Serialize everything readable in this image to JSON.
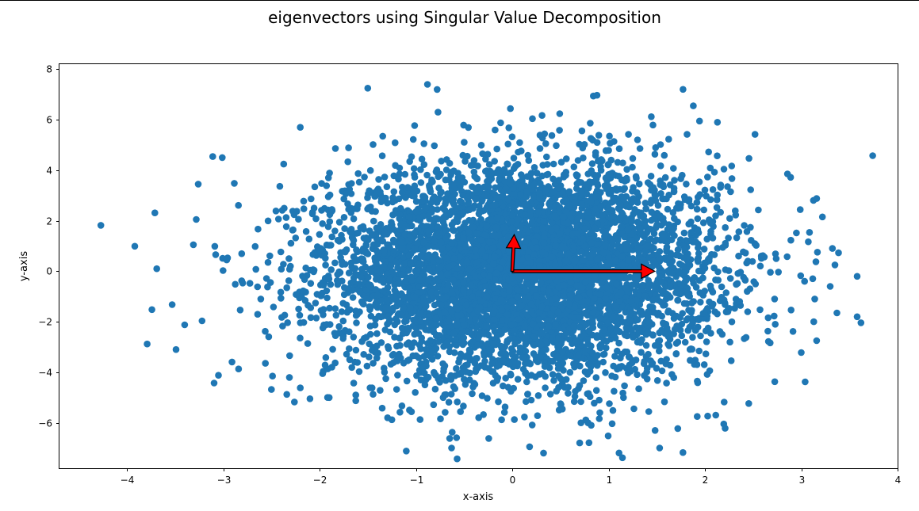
{
  "chart_data": {
    "type": "scatter",
    "title": "eigenvectors using Singular Value Decomposition",
    "xlabel": "x-axis",
    "ylabel": "y-axis",
    "xlim": [
      -4.7,
      4.0
    ],
    "ylim": [
      -7.8,
      8.2
    ],
    "xticks": [
      -4,
      -3,
      -2,
      -1,
      0,
      1,
      2,
      3,
      4
    ],
    "xtick_labels": [
      "−4",
      "−3",
      "−2",
      "−1",
      "0",
      "1",
      "2",
      "3",
      "4"
    ],
    "yticks": [
      -6,
      -4,
      -2,
      0,
      2,
      4,
      6,
      8
    ],
    "ytick_labels": [
      "−6",
      "−4",
      "−2",
      "0",
      "2",
      "4",
      "6",
      "8"
    ],
    "grid": false,
    "point_color": "#1f77b4",
    "arrow_color": "#ff0000",
    "distribution": {
      "n": 6000,
      "x_mean": 0.12,
      "x_std": 1.0,
      "y_mean": 0.0,
      "y_std": 2.1
    },
    "points": [
      [
        -4.27,
        1.82
      ],
      [
        -3.71,
        2.31
      ],
      [
        -3.69,
        0.1
      ],
      [
        -3.79,
        -2.88
      ],
      [
        -3.74,
        -1.52
      ],
      [
        -3.53,
        -1.32
      ],
      [
        -3.4,
        -2.12
      ],
      [
        -3.28,
        2.05
      ],
      [
        -3.26,
        3.45
      ],
      [
        -3.31,
        1.05
      ],
      [
        -3.05,
        -4.12
      ],
      [
        -3.01,
        4.5
      ],
      [
        -2.2,
        5.7
      ],
      [
        -1.5,
        7.25
      ],
      [
        -0.88,
        7.4
      ],
      [
        -0.78,
        7.2
      ],
      [
        0.88,
        6.97
      ],
      [
        1.53,
        -7.0
      ],
      [
        -1.1,
        -7.12
      ],
      [
        -0.63,
        -7.0
      ],
      [
        -0.65,
        -6.62
      ],
      [
        0.7,
        -6.8
      ],
      [
        0.18,
        -6.95
      ],
      [
        2.21,
        -6.22
      ],
      [
        -1.9,
        -5.0
      ],
      [
        -2.1,
        -5.05
      ],
      [
        2.52,
        5.42
      ],
      [
        2.13,
        5.9
      ],
      [
        1.88,
        6.55
      ],
      [
        2.89,
        3.72
      ],
      [
        3.16,
        2.88
      ],
      [
        3.22,
        2.15
      ],
      [
        3.35,
        0.25
      ],
      [
        3.58,
        -0.2
      ],
      [
        3.58,
        -1.8
      ],
      [
        3.62,
        -2.04
      ],
      [
        3.37,
        -1.65
      ],
      [
        3.13,
        -2.0
      ],
      [
        3.16,
        -2.75
      ],
      [
        3.04,
        -4.38
      ],
      [
        3.0,
        -3.22
      ],
      [
        2.73,
        -2.1
      ],
      [
        3.14,
        -1.1
      ],
      [
        3.3,
        -0.6
      ],
      [
        -2.5,
        -4.68
      ],
      [
        -2.2,
        -4.62
      ],
      [
        -1.25,
        -5.88
      ],
      [
        0.82,
        -6.1
      ],
      [
        1.92,
        -5.75
      ],
      [
        2.2,
        -5.18
      ]
    ],
    "arrows": [
      {
        "x0": 0.0,
        "y0": 0.0,
        "x1": 1.48,
        "y1": 0.0
      },
      {
        "x0": 0.0,
        "y0": 0.0,
        "x1": 0.02,
        "y1": 1.45
      }
    ]
  }
}
